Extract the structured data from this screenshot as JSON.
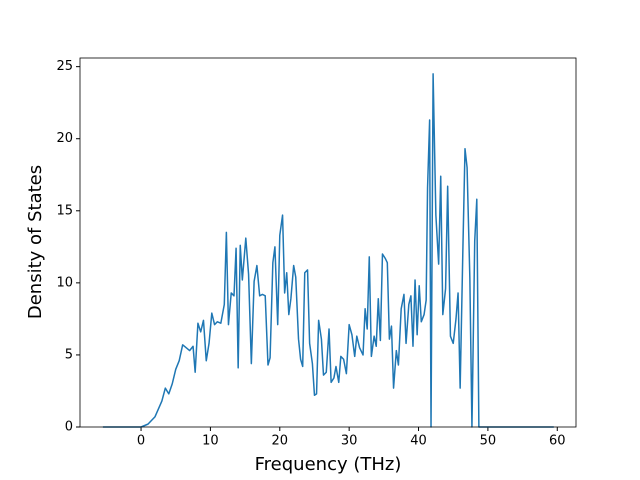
{
  "chart_data": {
    "type": "line",
    "x_label": "Frequency (THz)",
    "y_label": "Density of States",
    "x": [
      -5.5,
      0,
      1,
      2,
      3,
      3.5,
      4,
      4.5,
      5,
      5.5,
      6,
      6.5,
      7,
      7.5,
      7.8,
      8.2,
      8.6,
      9,
      9.4,
      9.8,
      10.2,
      10.6,
      11,
      11.5,
      12,
      12.3,
      12.6,
      13,
      13.4,
      13.7,
      14,
      14.3,
      14.6,
      15.1,
      15.5,
      15.9,
      16.3,
      16.7,
      17.1,
      17.5,
      17.9,
      18.3,
      18.6,
      19,
      19.3,
      19.7,
      20,
      20.4,
      20.7,
      21,
      21.3,
      21.6,
      22,
      22.3,
      22.7,
      23,
      23.3,
      23.6,
      24,
      24.3,
      24.7,
      25,
      25.3,
      25.6,
      26,
      26.3,
      26.7,
      27.1,
      27.4,
      27.8,
      28.1,
      28.5,
      28.8,
      29.2,
      29.6,
      30,
      30.4,
      30.8,
      31.1,
      31.5,
      32,
      32.3,
      32.6,
      32.9,
      33.2,
      33.6,
      33.9,
      34.2,
      34.5,
      34.8,
      35.2,
      35.5,
      35.8,
      36.1,
      36.4,
      36.8,
      37.1,
      37.5,
      37.9,
      38.2,
      38.6,
      38.9,
      39.2,
      39.5,
      39.8,
      40.1,
      40.4,
      40.8,
      41.1,
      41.3,
      41.6,
      41.8,
      42.1,
      42.5,
      42.9,
      43.2,
      43.5,
      43.9,
      44.2,
      44.6,
      45,
      45.4,
      45.7,
      46,
      46.4,
      46.7,
      47,
      47.4,
      47.7,
      48.1,
      48.4,
      48.7,
      59.5
    ],
    "values": [
      0,
      0,
      0.2,
      0.7,
      1.8,
      2.7,
      2.3,
      3,
      4,
      4.6,
      5.7,
      5.5,
      5.3,
      5.6,
      3.8,
      7.2,
      6.6,
      7.4,
      4.6,
      5.8,
      7.9,
      7.1,
      7.3,
      7.2,
      8.5,
      13.5,
      7.1,
      9.3,
      9.1,
      12.4,
      4.1,
      12.6,
      10.2,
      13.1,
      10.6,
      4.4,
      10.1,
      11.2,
      9.1,
      9.2,
      9.1,
      4.3,
      4.8,
      11.4,
      12.5,
      7.1,
      13.3,
      14.7,
      9.3,
      10.7,
      7.8,
      8.9,
      11.2,
      10.4,
      6.1,
      4.7,
      4.2,
      10.7,
      10.9,
      5.8,
      4.4,
      2.2,
      2.3,
      7.4,
      6.1,
      3.6,
      3.8,
      6.8,
      3.1,
      3.4,
      4.2,
      3.1,
      4.9,
      4.7,
      3.7,
      7.1,
      6.4,
      4.9,
      6.3,
      5.5,
      5,
      8.2,
      6.8,
      11.8,
      4.9,
      6.3,
      5.6,
      8.9,
      6,
      12,
      11.7,
      11.4,
      6.1,
      7,
      2.7,
      5.3,
      4.3,
      8.2,
      9.2,
      5.8,
      8.5,
      9.1,
      5.6,
      10.2,
      6.4,
      9.8,
      7.3,
      7.8,
      8.8,
      16.6,
      21.3,
      0,
      24.5,
      14.7,
      11.3,
      17.4,
      7.8,
      9.6,
      16.7,
      6.3,
      5.8,
      7.5,
      9.3,
      2.7,
      12.5,
      19.3,
      18,
      10.3,
      0,
      12.9,
      15.8,
      0,
      0
    ],
    "color": "#1f77b4",
    "xlim": [
      -8.8,
      62.7
    ],
    "ylim": [
      0,
      25.6
    ],
    "xticks": [
      0,
      10,
      20,
      30,
      40,
      50,
      60
    ],
    "yticks": [
      0,
      5,
      10,
      15,
      20,
      25
    ]
  }
}
